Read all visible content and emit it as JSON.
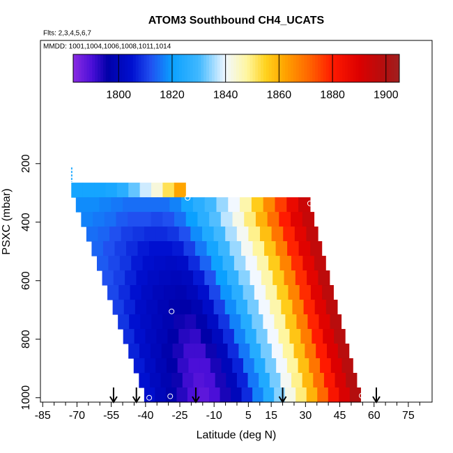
{
  "chart_data": {
    "type": "curtain",
    "title": "ATOM3 Southbound CH4_UCATS",
    "subtitle": "Flts: 2,3,4,5,6,7",
    "annotation": "MMDD: 1001,1004,1006,1008,1011,1014",
    "xlabel": "Latitude (deg N)",
    "ylabel": "PSXC (mbar)",
    "xlim": [
      -86,
      85.4
    ],
    "xticks": [
      -85,
      -70,
      -55,
      -40,
      -25,
      -10,
      5,
      15,
      30,
      45,
      60,
      75
    ],
    "xminor_ticks": [
      -80,
      -75,
      -65,
      -60,
      -50,
      -45,
      -35,
      -30,
      -20,
      -15,
      -5,
      0,
      10,
      20,
      25,
      35,
      40,
      50,
      55,
      65,
      70,
      80
    ],
    "ylim": [
      -221,
      1015
    ],
    "yticks": [
      200,
      400,
      600,
      800,
      1000
    ],
    "clim": [
      1783,
      1905
    ],
    "colorbar_ticks": [
      1800,
      1820,
      1840,
      1860,
      1880,
      1900
    ],
    "colorscale": [
      [
        1783,
        "#8a2be2"
      ],
      [
        1790,
        "#4b0fd8"
      ],
      [
        1796,
        "#0000a8"
      ],
      [
        1805,
        "#0010d0"
      ],
      [
        1812,
        "#2050f0"
      ],
      [
        1820,
        "#0aa0ff"
      ],
      [
        1830,
        "#40b8ff"
      ],
      [
        1840,
        "#f2f8ff"
      ],
      [
        1848,
        "#fff6a0"
      ],
      [
        1855,
        "#ffd21e"
      ],
      [
        1862,
        "#ffa500"
      ],
      [
        1872,
        "#ff6000"
      ],
      [
        1880,
        "#ff1a00"
      ],
      [
        1890,
        "#dc0000"
      ],
      [
        1900,
        "#b01010"
      ],
      [
        1905,
        "#a02020"
      ]
    ],
    "rows": [
      {
        "pressure": [
          265,
          315
        ],
        "lat_range": [
          -72.5,
          -22.5
        ],
        "values": [
          1822,
          1822,
          1822,
          1823,
          1826,
          1832,
          1838,
          1843,
          1852,
          1862
        ]
      },
      {
        "pressure": [
          315,
          365
        ],
        "lat_range": [
          -70.5,
          32
        ],
        "values": [
          1818,
          1818,
          1817,
          1816,
          1815,
          1815,
          1815,
          1815,
          1817,
          1822,
          1826,
          1830,
          1835,
          1840,
          1847,
          1856,
          1866,
          1876,
          1886,
          1894
        ]
      },
      {
        "pressure": [
          365,
          415
        ],
        "lat_range": [
          -68.2,
          33.7
        ],
        "values": [
          1817,
          1816,
          1815,
          1813,
          1812,
          1812,
          1811,
          1812,
          1815,
          1820,
          1826,
          1831,
          1837,
          1842,
          1850,
          1860,
          1870,
          1880,
          1889,
          1895
        ]
      },
      {
        "pressure": [
          415,
          465
        ],
        "lat_range": [
          -65.9,
          35.4
        ],
        "values": [
          1815,
          1814,
          1812,
          1810,
          1809,
          1808,
          1808,
          1809,
          1812,
          1818,
          1824,
          1830,
          1836,
          1841,
          1849,
          1858,
          1869,
          1879,
          1888,
          1896
        ]
      },
      {
        "pressure": [
          465,
          515
        ],
        "lat_range": [
          -63.6,
          37.1
        ],
        "values": [
          1814,
          1812,
          1810,
          1808,
          1806,
          1805,
          1805,
          1806,
          1810,
          1816,
          1822,
          1829,
          1835,
          1841,
          1848,
          1857,
          1868,
          1879,
          1889,
          1896
        ]
      },
      {
        "pressure": [
          515,
          565
        ],
        "lat_range": [
          -61.3,
          38.8
        ],
        "values": [
          1813,
          1811,
          1809,
          1806,
          1804,
          1803,
          1802,
          1803,
          1808,
          1814,
          1821,
          1828,
          1835,
          1840,
          1847,
          1856,
          1867,
          1878,
          1888,
          1896
        ]
      },
      {
        "pressure": [
          565,
          615
        ],
        "lat_range": [
          -59,
          40.5
        ],
        "values": [
          1812,
          1810,
          1807,
          1804,
          1802,
          1801,
          1800,
          1801,
          1806,
          1812,
          1820,
          1827,
          1834,
          1840,
          1847,
          1856,
          1867,
          1878,
          1888,
          1897
        ]
      },
      {
        "pressure": [
          615,
          665
        ],
        "lat_range": [
          -56.7,
          42.2
        ],
        "values": [
          1811,
          1808,
          1805,
          1802,
          1800,
          1799,
          1798,
          1800,
          1804,
          1811,
          1819,
          1826,
          1833,
          1840,
          1847,
          1856,
          1867,
          1878,
          1889,
          1897
        ]
      },
      {
        "pressure": [
          665,
          715
        ],
        "lat_range": [
          -54.4,
          43.9
        ],
        "values": [
          1810,
          1807,
          1803,
          1801,
          1799,
          1797,
          1796,
          1798,
          1803,
          1810,
          1818,
          1826,
          1833,
          1840,
          1847,
          1856,
          1867,
          1879,
          1889,
          1897
        ]
      },
      {
        "pressure": [
          715,
          765
        ],
        "lat_range": [
          -52.1,
          45.6
        ],
        "values": [
          1809,
          1805,
          1802,
          1800,
          1798,
          1795,
          1794,
          1797,
          1802,
          1809,
          1817,
          1825,
          1833,
          1840,
          1847,
          1857,
          1868,
          1879,
          1889,
          1898
        ]
      },
      {
        "pressure": [
          765,
          815
        ],
        "lat_range": [
          -49.8,
          47.3
        ],
        "values": [
          1808,
          1804,
          1801,
          1799,
          1796,
          1793,
          1792,
          1796,
          1801,
          1808,
          1817,
          1825,
          1833,
          1840,
          1848,
          1857,
          1868,
          1880,
          1890,
          1898
        ]
      },
      {
        "pressure": [
          815,
          865
        ],
        "lat_range": [
          -47.5,
          49
        ],
        "values": [
          1807,
          1803,
          1800,
          1797,
          1794,
          1791,
          1791,
          1795,
          1800,
          1808,
          1816,
          1825,
          1833,
          1840,
          1848,
          1858,
          1869,
          1880,
          1890,
          1898
        ]
      },
      {
        "pressure": [
          865,
          915
        ],
        "lat_range": [
          -45.2,
          50.7
        ],
        "values": [
          1806,
          1802,
          1799,
          1796,
          1792,
          1790,
          1790,
          1794,
          1800,
          1807,
          1816,
          1824,
          1833,
          1840,
          1848,
          1858,
          1869,
          1880,
          1890,
          1898
        ]
      },
      {
        "pressure": [
          915,
          965
        ],
        "lat_range": [
          -42.9,
          52.4
        ],
        "values": [
          1805,
          1801,
          1798,
          1795,
          1791,
          1789,
          1790,
          1794,
          1800,
          1807,
          1816,
          1824,
          1833,
          1841,
          1849,
          1859,
          1870,
          1881,
          1891,
          1899
        ]
      },
      {
        "pressure": [
          965,
          1015
        ],
        "lat_range": [
          -40.6,
          54.1
        ],
        "values": [
          1804,
          1800,
          1797,
          1793,
          1790,
          1788,
          1790,
          1794,
          1800,
          1808,
          1817,
          1825,
          1834,
          1842,
          1850,
          1860,
          1871,
          1882,
          1891,
          1899
        ]
      }
    ],
    "extra_profile": {
      "lat": -72.3,
      "pressure": [
        213,
        262
      ],
      "value": 1826
    },
    "points": {
      "lat": [
        -21.6,
        32,
        -28.6,
        -38.4,
        -29.2,
        54.6
      ],
      "pressure": [
        317,
        336,
        705,
        1000,
        995,
        993
      ]
    },
    "arrows": [
      -54,
      -44,
      -18,
      20,
      61
    ]
  }
}
